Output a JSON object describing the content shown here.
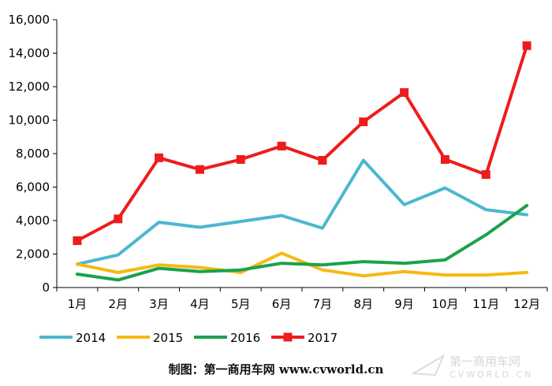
{
  "chart_data": {
    "type": "line",
    "categories": [
      "1月",
      "2月",
      "3月",
      "4月",
      "5月",
      "6月",
      "7月",
      "8月",
      "9月",
      "10月",
      "11月",
      "12月"
    ],
    "ylim": [
      0,
      16000
    ],
    "yticks": [
      0,
      2000,
      4000,
      6000,
      8000,
      10000,
      12000,
      14000,
      16000
    ],
    "ytick_labels": [
      "0",
      "2,000",
      "4,000",
      "6,000",
      "8,000",
      "10,000",
      "12,000",
      "14,000",
      "16,000"
    ],
    "grid": false,
    "legend_position": "bottom",
    "series": [
      {
        "name": "2014",
        "color": "#4bb7cf",
        "marker": "none",
        "values": [
          1400,
          1950,
          3900,
          3600,
          3950,
          4300,
          3550,
          7600,
          4950,
          5950,
          4650,
          4350
        ]
      },
      {
        "name": "2015",
        "color": "#f6b913",
        "marker": "none",
        "values": [
          1400,
          900,
          1350,
          1200,
          900,
          2050,
          1050,
          700,
          950,
          750,
          750,
          900
        ]
      },
      {
        "name": "2016",
        "color": "#1aa24a",
        "marker": "none",
        "values": [
          800,
          450,
          1150,
          950,
          1050,
          1450,
          1350,
          1550,
          1450,
          1650,
          3150,
          4900
        ]
      },
      {
        "name": "2017",
        "color": "#ee1c1c",
        "marker": "square",
        "values": [
          2800,
          4100,
          7750,
          7050,
          7650,
          8450,
          7600,
          9900,
          11650,
          7650,
          6750,
          14450
        ]
      }
    ]
  },
  "credit_text": "制图：第一商用车网 www.cvworld.cn",
  "watermark": {
    "text_cn": "第一商用车网",
    "text_en": "CVWORLD.CN"
  }
}
